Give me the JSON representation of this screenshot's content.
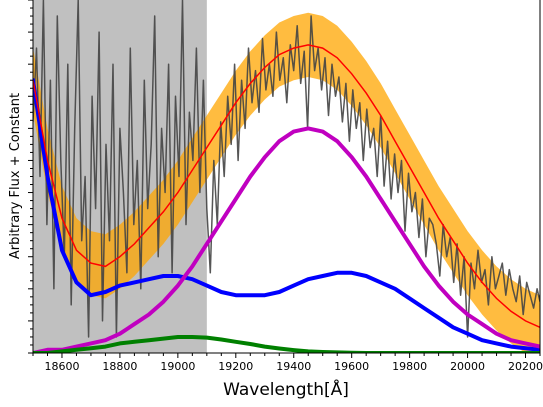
{
  "chart_data": {
    "type": "line",
    "title": "",
    "xlabel": "Wavelength[Å]",
    "ylabel": "Arbitrary Flux + Constant",
    "xlim": [
      18500,
      20250
    ],
    "ylim": [
      0,
      1.1
    ],
    "x_ticks": [
      18600,
      18800,
      19000,
      19200,
      19400,
      19600,
      19800,
      20000,
      20200
    ],
    "y_tick_labels_shown": false,
    "grid": false,
    "legend": "none",
    "shaded_region": {
      "x_start": 18500,
      "x_end": 19100,
      "color": "#c0c0c0"
    },
    "series": [
      {
        "kind": "observed-spectrum",
        "color": "#444444",
        "x": [
          18500,
          18512,
          18524,
          18536,
          18548,
          18560,
          18572,
          18584,
          18596,
          18608,
          18620,
          18632,
          18644,
          18656,
          18668,
          18680,
          18692,
          18704,
          18716,
          18728,
          18740,
          18752,
          18764,
          18776,
          18788,
          18800,
          18812,
          18824,
          18836,
          18848,
          18860,
          18872,
          18884,
          18896,
          18908,
          18920,
          18932,
          18944,
          18956,
          18968,
          18980,
          18992,
          19004,
          19016,
          19028,
          19040,
          19052,
          19064,
          19076,
          19088,
          19100,
          19112,
          19124,
          19136,
          19148,
          19160,
          19172,
          19184,
          19196,
          19208,
          19220,
          19232,
          19244,
          19256,
          19268,
          19280,
          19292,
          19304,
          19316,
          19328,
          19340,
          19352,
          19364,
          19376,
          19388,
          19400,
          19412,
          19424,
          19436,
          19448,
          19460,
          19472,
          19484,
          19496,
          19508,
          19520,
          19532,
          19544,
          19556,
          19568,
          19580,
          19592,
          19604,
          19616,
          19628,
          19640,
          19652,
          19664,
          19676,
          19688,
          19700,
          19712,
          19724,
          19736,
          19748,
          19760,
          19772,
          19784,
          19796,
          19808,
          19820,
          19832,
          19844,
          19856,
          19868,
          19880,
          19892,
          19904,
          19916,
          19928,
          19940,
          19952,
          19964,
          19976,
          19988,
          20000,
          20012,
          20024,
          20036,
          20048,
          20060,
          20072,
          20084,
          20096,
          20108,
          20120,
          20132,
          20144,
          20156,
          20168,
          20180,
          20192,
          20204,
          20216,
          20228,
          20240,
          20250
        ],
        "y": [
          0.72,
          0.95,
          0.55,
          1.1,
          0.4,
          0.85,
          0.2,
          1.05,
          0.6,
          0.3,
          0.9,
          0.15,
          0.7,
          1.1,
          0.35,
          0.55,
          0.05,
          0.8,
          0.45,
          1.0,
          0.1,
          0.65,
          0.35,
          0.9,
          0.05,
          0.7,
          0.5,
          0.25,
          0.95,
          0.4,
          0.6,
          0.2,
          0.85,
          0.45,
          0.65,
          1.05,
          0.3,
          0.7,
          0.5,
          0.9,
          0.25,
          0.8,
          0.55,
          1.1,
          0.4,
          0.75,
          0.6,
          0.95,
          0.5,
          0.85,
          0.45,
          0.25,
          0.6,
          0.4,
          0.72,
          0.55,
          0.8,
          0.65,
          0.9,
          0.6,
          0.85,
          0.7,
          0.95,
          0.78,
          0.88,
          0.75,
          0.98,
          0.82,
          0.9,
          0.8,
          1.0,
          0.85,
          0.92,
          0.78,
          0.96,
          0.88,
          1.02,
          0.84,
          0.94,
          0.7,
          1.05,
          0.88,
          0.95,
          0.82,
          0.92,
          0.74,
          0.9,
          0.8,
          0.86,
          0.72,
          0.84,
          0.66,
          0.82,
          0.7,
          0.78,
          0.6,
          0.76,
          0.64,
          0.7,
          0.55,
          0.74,
          0.52,
          0.66,
          0.48,
          0.62,
          0.5,
          0.6,
          0.38,
          0.56,
          0.44,
          0.5,
          0.36,
          0.48,
          0.3,
          0.42,
          0.4,
          0.34,
          0.24,
          0.4,
          0.3,
          0.36,
          0.22,
          0.34,
          0.18,
          0.3,
          0.05,
          0.28,
          0.2,
          0.32,
          0.22,
          0.26,
          0.15,
          0.3,
          0.2,
          0.24,
          0.28,
          0.18,
          0.26,
          0.2,
          0.16,
          0.24,
          0.12,
          0.22,
          0.18,
          0.14,
          0.2,
          0.16
        ]
      },
      {
        "kind": "total-model",
        "color": "#ff0000",
        "band_color": "#ffa500",
        "band_halfwidth": 0.1,
        "x": [
          18500,
          18550,
          18600,
          18650,
          18700,
          18750,
          18800,
          18850,
          18900,
          18950,
          19000,
          19050,
          19100,
          19150,
          19200,
          19250,
          19300,
          19350,
          19400,
          19450,
          19500,
          19550,
          19600,
          19650,
          19700,
          19750,
          19800,
          19850,
          19900,
          19950,
          20000,
          20050,
          20100,
          20150,
          20200,
          20250
        ],
        "y": [
          0.85,
          0.6,
          0.42,
          0.32,
          0.28,
          0.27,
          0.3,
          0.34,
          0.39,
          0.44,
          0.5,
          0.57,
          0.64,
          0.71,
          0.78,
          0.84,
          0.89,
          0.93,
          0.95,
          0.96,
          0.95,
          0.92,
          0.87,
          0.81,
          0.74,
          0.66,
          0.58,
          0.5,
          0.42,
          0.35,
          0.28,
          0.22,
          0.17,
          0.13,
          0.1,
          0.08
        ]
      },
      {
        "kind": "component-1",
        "color": "#0000ff",
        "x": [
          18500,
          18550,
          18600,
          18650,
          18700,
          18750,
          18800,
          18850,
          18900,
          18950,
          19000,
          19050,
          19100,
          19150,
          19200,
          19250,
          19300,
          19350,
          19400,
          19450,
          19500,
          19550,
          19600,
          19650,
          19700,
          19750,
          19800,
          19850,
          19900,
          19950,
          20000,
          20050,
          20100,
          20150,
          20200,
          20250
        ],
        "y": [
          0.85,
          0.55,
          0.32,
          0.22,
          0.18,
          0.19,
          0.21,
          0.22,
          0.23,
          0.24,
          0.24,
          0.23,
          0.21,
          0.19,
          0.18,
          0.18,
          0.18,
          0.19,
          0.21,
          0.23,
          0.24,
          0.25,
          0.25,
          0.24,
          0.22,
          0.2,
          0.17,
          0.14,
          0.11,
          0.08,
          0.06,
          0.04,
          0.03,
          0.02,
          0.015,
          0.01
        ]
      },
      {
        "kind": "component-2",
        "color": "#c000c0",
        "x": [
          18500,
          18550,
          18600,
          18650,
          18700,
          18750,
          18800,
          18850,
          18900,
          18950,
          19000,
          19050,
          19100,
          19150,
          19200,
          19250,
          19300,
          19350,
          19400,
          19450,
          19500,
          19550,
          19600,
          19650,
          19700,
          19750,
          19800,
          19850,
          19900,
          19950,
          20000,
          20050,
          20100,
          20150,
          20200,
          20250
        ],
        "y": [
          0.0,
          0.01,
          0.01,
          0.02,
          0.03,
          0.04,
          0.06,
          0.09,
          0.12,
          0.16,
          0.21,
          0.27,
          0.34,
          0.41,
          0.48,
          0.55,
          0.61,
          0.66,
          0.69,
          0.7,
          0.69,
          0.66,
          0.61,
          0.55,
          0.48,
          0.41,
          0.34,
          0.27,
          0.21,
          0.16,
          0.12,
          0.09,
          0.06,
          0.04,
          0.03,
          0.02
        ]
      },
      {
        "kind": "component-3",
        "color": "#008000",
        "x": [
          18500,
          18550,
          18600,
          18650,
          18700,
          18750,
          18800,
          18850,
          18900,
          18950,
          19000,
          19050,
          19100,
          19150,
          19200,
          19250,
          19300,
          19350,
          19400,
          19450,
          19500,
          19550,
          19600,
          19650,
          19700,
          19750,
          19800,
          19850,
          19900,
          19950,
          20000,
          20050,
          20100,
          20150,
          20200,
          20250
        ],
        "y": [
          0.0,
          0.0,
          0.005,
          0.01,
          0.015,
          0.02,
          0.03,
          0.035,
          0.04,
          0.045,
          0.05,
          0.05,
          0.048,
          0.042,
          0.035,
          0.028,
          0.02,
          0.014,
          0.009,
          0.005,
          0.003,
          0.002,
          0.001,
          0.0,
          0.0,
          0.0,
          0.0,
          0.0,
          0.0,
          0.0,
          0.0,
          0.0,
          0.0,
          0.0,
          0.0,
          0.0
        ]
      }
    ]
  }
}
